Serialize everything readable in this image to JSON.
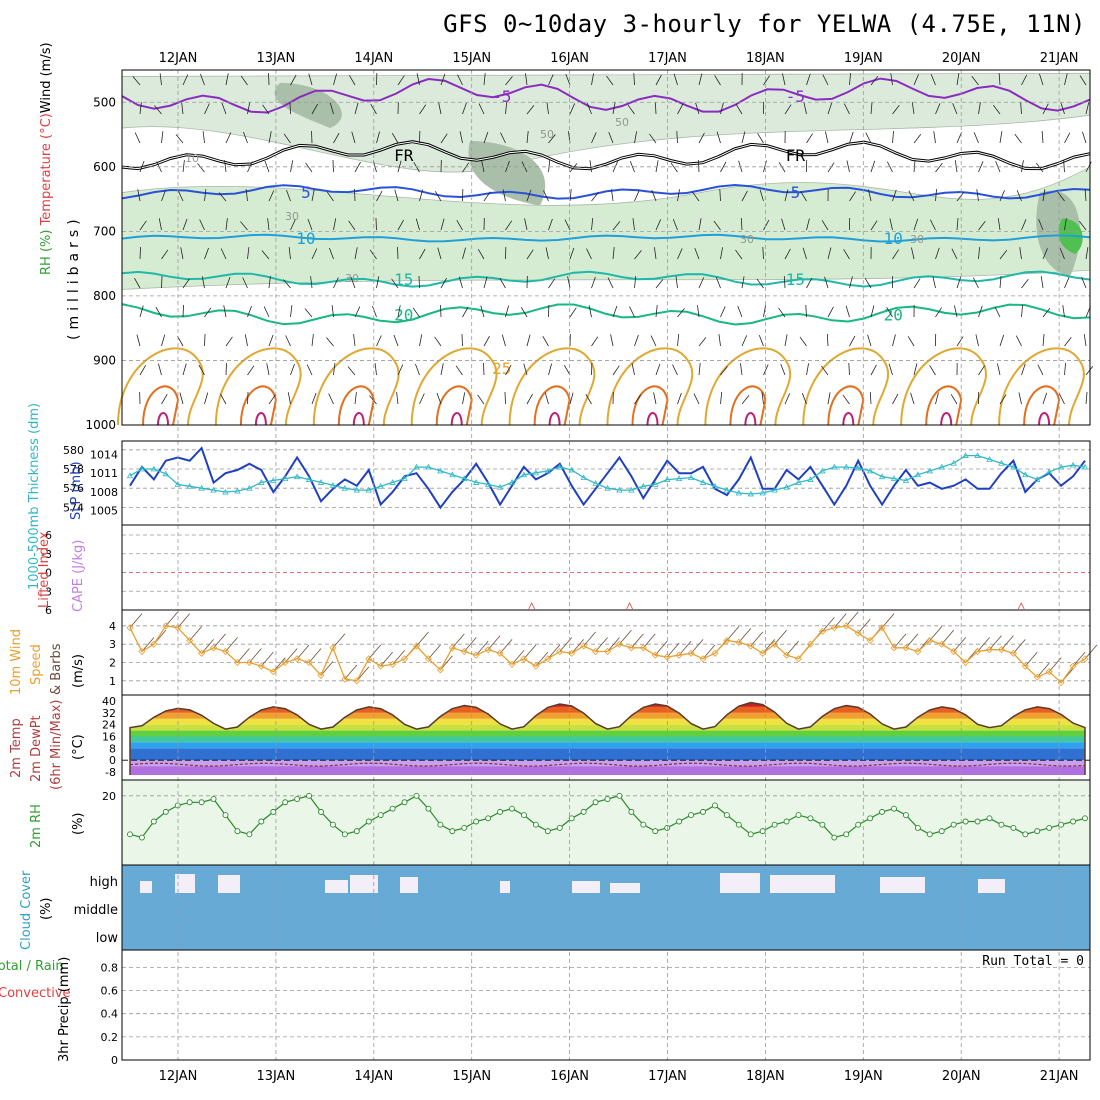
{
  "title": "GFS 0~10day 3-hourly for YELWA (4.75E, 11N)",
  "dates": [
    "12JAN",
    "13JAN",
    "14JAN",
    "15JAN",
    "16JAN",
    "17JAN",
    "18JAN",
    "19JAN",
    "20JAN",
    "21JAN"
  ],
  "run_total": "Run Total = 0",
  "chart_data": [
    {
      "type": "line",
      "name": "cross-section",
      "ylabel_parts": [
        "RH (%)",
        "Temperature (°C)",
        "Wind (m/s)"
      ],
      "ylabel2": "(millibars)",
      "yticks": [
        500,
        600,
        700,
        800,
        900,
        1000
      ],
      "ylim": [
        450,
        1000
      ],
      "contours": [
        {
          "label": "-5",
          "color": "#8a2cc0",
          "levels_mb": [
            463,
            518
          ],
          "label_x": [
            "15JAN",
            "18JAN"
          ]
        },
        {
          "label": "FR",
          "color": "#000000",
          "levels_mb": [
            560,
            604
          ],
          "label_x": [
            "14JAN",
            "18JAN"
          ]
        },
        {
          "label": "5",
          "color": "#2a52d8",
          "levels_mb": [
            628,
            650
          ],
          "label_x": [
            "13JAN",
            "18JAN"
          ]
        },
        {
          "label": "10",
          "color": "#1fa0d8",
          "levels_mb": [
            705,
            716
          ],
          "label_x": [
            "13JAN",
            "19JAN"
          ]
        },
        {
          "label": "15",
          "color": "#20b8a8",
          "levels_mb": [
            762,
            786
          ],
          "label_x": [
            "14JAN",
            "18JAN"
          ]
        },
        {
          "label": "20",
          "color": "#18b880",
          "levels_mb": [
            812,
            845
          ],
          "label_x": [
            "14JAN",
            "19JAN"
          ]
        },
        {
          "label": "25",
          "color": "#e0a830",
          "levels_mb": [
            880,
            960
          ],
          "label_x": [
            "15JAN"
          ]
        }
      ],
      "rh_labels": [
        "10",
        "30",
        "30",
        "30",
        "30",
        "50",
        "50"
      ]
    },
    {
      "type": "line",
      "name": "thickness-slp",
      "ylabel_left": "1000-500mb Thickness (dm)",
      "ylabel_right": "SLP (mb)",
      "yticks_left": [
        574,
        576,
        578,
        580
      ],
      "yticks_right": [
        1005,
        1008,
        1011,
        1014
      ],
      "series": [
        {
          "name": "SLP",
          "color": "#2040c0",
          "values": [
            1009,
            1012,
            1010,
            1013,
            1013.5,
            1013,
            1015,
            1009.5,
            1011,
            1011.5,
            1012.5,
            1011.5,
            1008,
            1010.5,
            1013.5,
            1010.5,
            1006.5,
            1008.5,
            1010,
            1009,
            1011.5,
            1006,
            1008,
            1010.5,
            1011,
            1008.5,
            1005.5,
            1008,
            1010,
            1012.5,
            1009.5,
            1006,
            1009,
            1012,
            1010,
            1011,
            1012.5,
            1009,
            1006,
            1008.5,
            1011,
            1013.5,
            1010.5,
            1007,
            1010,
            1013,
            1011,
            1011,
            1012,
            1008.5,
            1007.5,
            1010,
            1013.5,
            1008.5,
            1008.5,
            1011.5,
            1010,
            1012,
            1009,
            1006,
            1009,
            1013,
            1009,
            1006,
            1009,
            1011.5,
            1009,
            1009.5,
            1008.5,
            1009,
            1010,
            1008.5,
            1008.5,
            1011,
            1013,
            1008,
            1010,
            1011,
            1009,
            1010.5,
            1013
          ]
        },
        {
          "name": "Thickness",
          "color": "#30b8c8",
          "values": [
            577.3,
            578,
            578,
            577.5,
            576.4,
            576.2,
            576,
            575.8,
            575.6,
            575.7,
            576,
            576.6,
            576.8,
            577,
            577.2,
            576.9,
            576.6,
            576.3,
            576,
            575.8,
            575.8,
            576.2,
            576.6,
            577,
            578.2,
            578.2,
            577.8,
            577.4,
            577,
            576.6,
            576.4,
            576.1,
            576.6,
            577.4,
            577.6,
            577.8,
            578.2,
            577.9,
            577.1,
            576.5,
            576,
            575.8,
            575.8,
            576.2,
            576.4,
            576.9,
            577,
            577.1,
            576.6,
            576.2,
            575.8,
            575.5,
            575.4,
            575.5,
            575.8,
            576.1,
            576.6,
            576.9,
            577.8,
            578.2,
            578.2,
            578.1,
            577.8,
            577.2,
            577,
            576.8,
            577.4,
            577.8,
            578.2,
            578.6,
            579.4,
            579.4,
            579,
            578.6,
            578.2,
            577.4,
            576.9,
            577.7,
            578.2,
            578.4,
            578.2
          ]
        }
      ]
    },
    {
      "type": "line",
      "name": "lifted-cape",
      "ylabel_left": "Lifted Index",
      "ylabel_right": "CAPE (J/kg)",
      "yticks": [
        -6,
        -3,
        0,
        3,
        6
      ],
      "zero_line_color": "#e04040"
    },
    {
      "type": "line",
      "name": "wind10m",
      "ylabel_parts": [
        "10m Wind",
        "Speed",
        "& Barbs",
        "(m/s)"
      ],
      "yticks": [
        1,
        2,
        3,
        4
      ],
      "ylim": [
        0.5,
        4.7
      ],
      "series": [
        {
          "name": "Speed",
          "color": "#e8a030",
          "values": [
            3.9,
            2.6,
            3.0,
            4.0,
            3.9,
            3.2,
            2.5,
            2.8,
            2.6,
            2.0,
            2.0,
            1.8,
            1.5,
            2.0,
            2.2,
            2.0,
            1.3,
            2.8,
            1.1,
            1.0,
            2.2,
            1.8,
            1.9,
            2.2,
            2.9,
            2.2,
            1.6,
            2.8,
            2.6,
            2.4,
            2.7,
            2.5,
            1.9,
            2.2,
            1.8,
            2.2,
            2.6,
            2.5,
            2.9,
            2.6,
            2.6,
            3.0,
            2.8,
            2.8,
            2.4,
            2.3,
            2.4,
            2.5,
            2.2,
            2.5,
            3.2,
            3.1,
            2.9,
            2.5,
            3.0,
            2.4,
            2.2,
            3.0,
            3.7,
            3.9,
            4.0,
            3.6,
            3.2,
            3.9,
            2.8,
            2.8,
            2.6,
            3.2,
            3.0,
            2.6,
            2.0,
            2.6,
            2.7,
            2.7,
            2.5,
            1.8,
            1.2,
            1.5,
            0.9,
            1.8,
            2.2
          ]
        }
      ]
    },
    {
      "type": "area",
      "name": "temp-dewpt",
      "ylabel_parts": [
        "2m Temp",
        "2m DewPt",
        "(6hr Min/Max)",
        "(°C)"
      ],
      "yticks": [
        -8,
        0,
        8,
        16,
        24,
        32,
        40
      ],
      "ylim": [
        -10,
        42
      ],
      "temp_max": [
        35,
        36,
        36,
        37,
        38,
        38,
        39,
        37,
        36,
        36
      ],
      "temp_min": [
        22,
        21,
        21,
        21,
        21,
        21,
        21,
        21,
        21,
        22
      ],
      "dewpoint_range": [
        -4,
        -2
      ]
    },
    {
      "type": "line",
      "name": "rh2m",
      "ylabel_parts": [
        "2m RH",
        "(%)"
      ],
      "yticks": [
        20
      ],
      "ylim": [
        0,
        24
      ],
      "series": [
        {
          "name": "RH",
          "color": "#2a8a2a",
          "values": [
            8,
            7,
            12,
            15,
            17,
            18,
            18,
            19,
            14,
            9,
            8,
            12,
            15,
            18,
            19,
            20,
            15,
            11,
            8,
            9,
            12,
            14,
            16,
            18,
            20,
            16,
            11,
            9,
            10,
            12,
            13,
            15,
            16,
            14,
            11,
            9,
            10,
            13,
            15,
            18,
            19,
            20,
            15,
            11,
            9,
            10,
            12,
            14,
            15,
            17,
            14,
            11,
            8,
            9,
            11,
            12,
            14,
            13,
            11,
            7,
            8,
            11,
            13,
            15,
            16,
            14,
            10,
            8,
            9,
            11,
            12,
            12,
            13,
            11,
            10,
            8,
            9,
            10,
            11,
            12,
            13
          ]
        }
      ]
    },
    {
      "type": "bar",
      "name": "cloud-cover",
      "ylabel_parts": [
        "Cloud Cover",
        "(%)"
      ],
      "categories": [
        "high",
        "middle",
        "low"
      ]
    },
    {
      "type": "bar",
      "name": "precip",
      "ylabel_parts": [
        "Total / Rain",
        "Convective",
        "3hr Precip (mm)"
      ],
      "yticks": [
        0,
        0.2,
        0.4,
        0.6,
        0.8
      ],
      "ylim": [
        0,
        0.95
      ]
    }
  ]
}
